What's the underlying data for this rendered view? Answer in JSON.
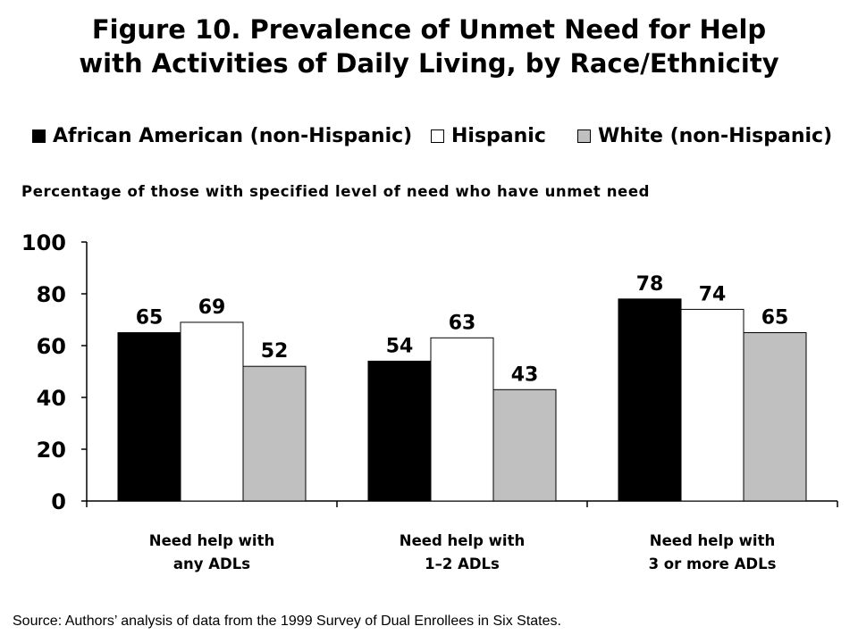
{
  "chart_data": {
    "type": "bar",
    "title_lines": [
      "Figure 10. Prevalence of Unmet Need for Help",
      "with Activities of Daily Living, by Race/Ethnicity"
    ],
    "subtitle": "Percentage of those with specified level of need who have unmet need",
    "categories": [
      [
        "Need help with",
        "any ADLs"
      ],
      [
        "Need help with",
        "1–2 ADLs"
      ],
      [
        "Need help with",
        "3 or more ADLs"
      ]
    ],
    "series": [
      {
        "name": "African American (non-Hispanic)",
        "color": "#000000",
        "values": [
          65,
          54,
          78
        ]
      },
      {
        "name": "Hispanic",
        "color": "#ffffff",
        "values": [
          69,
          63,
          74
        ]
      },
      {
        "name": "White (non-Hispanic)",
        "color": "#c0c0c0",
        "values": [
          52,
          43,
          65
        ]
      }
    ],
    "ylim": [
      0,
      100
    ],
    "yticks": [
      0,
      20,
      40,
      60,
      80,
      100
    ],
    "grid": false,
    "legend_position": "top",
    "source": "Source: Authors’ analysis of data from the 1999 Survey of Dual Enrollees in Six States."
  }
}
